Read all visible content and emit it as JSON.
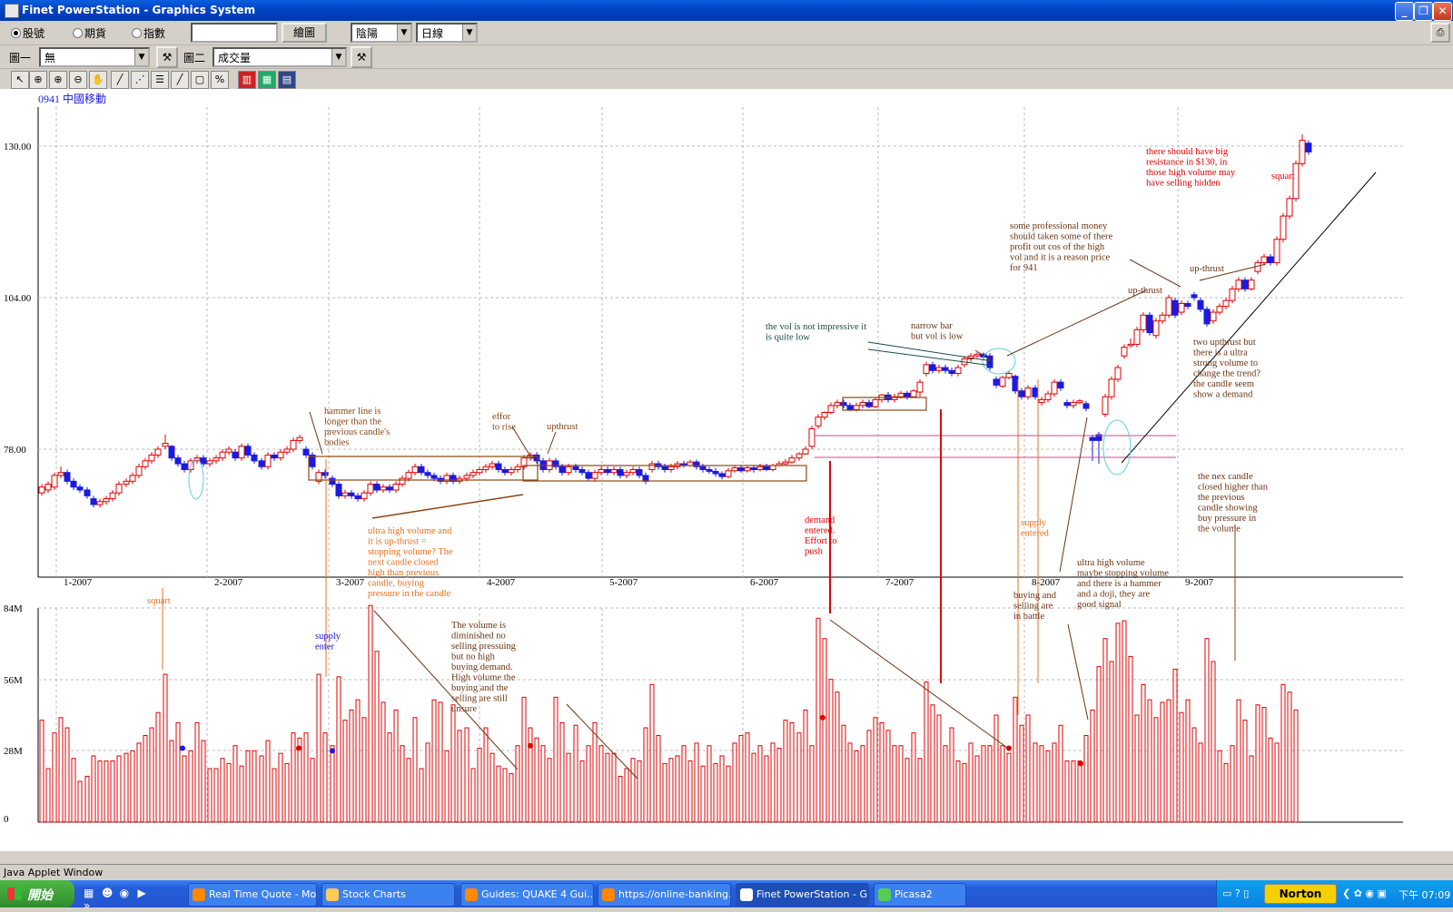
{
  "window": {
    "title": "Finet PowerStation - Graphics System"
  },
  "toolbar1": {
    "radios": [
      {
        "label": "股號",
        "checked": true
      },
      {
        "label": "期貨",
        "checked": false
      },
      {
        "label": "指數",
        "checked": false
      }
    ],
    "symbol_input": "",
    "draw_button": "繪圖",
    "chart_style": "陰陽",
    "period": "日線"
  },
  "toolbar2": {
    "graph1_label": "圖一",
    "graph1_value": "無",
    "graph2_label": "圖二",
    "graph2_value": "成交量"
  },
  "toolbar3": {
    "tools": [
      "pointer-icon",
      "crosshair-icon",
      "zoom-in-icon",
      "zoom-out-icon",
      "hand-icon",
      "line-tool-icon",
      "multi-line-tool-icon",
      "horizontal-lines-icon",
      "diagonal-line-icon",
      "box-tool-icon",
      "percent-tool-icon",
      "candle-type-icon",
      "color-chart-icon",
      "grid-chart-icon"
    ]
  },
  "chart": {
    "symbol_label": "0941 中國移動",
    "price_ticks": [
      "130.00",
      "104.00",
      "78.00"
    ],
    "month_labels": [
      "1-2007",
      "2-2007",
      "3-2007",
      "4-2007",
      "5-2007",
      "6-2007",
      "7-2007",
      "8-2007",
      "9-2007"
    ],
    "volume_ticks": [
      "84M",
      "56M",
      "28M",
      "0"
    ],
    "annotations": [
      {
        "text": "hammer line is\nlonger than the\nprevious candle's\nbodies",
        "color": "#8b4513"
      },
      {
        "text": "effor\nto rise",
        "color": "#8b4513"
      },
      {
        "text": "upthrust",
        "color": "#8b4513"
      },
      {
        "text": "ultra high volume and\nit is up-thrust =\nstopping volume? The\nnext candle closed\nhigh than previous\ncandle, buying\npressure in the candle",
        "color": "#e87020"
      },
      {
        "text": "squart",
        "color": "#e87020"
      },
      {
        "text": "supply\nenter",
        "color": "#1a1ae0"
      },
      {
        "text": "The volume is\ndiminished no\nselling pressuing\nbut no high\nbuying demand.\nHigh volume the\nbuying and the\nselling are still\nunsure",
        "color": "#6b3410"
      },
      {
        "text": "demand\nentered.\nEffort to\npush",
        "color": "#e00000"
      },
      {
        "text": "the vol is not impressive it\nis quite low",
        "color": "#1a4a4a"
      },
      {
        "text": "narrow bar\nbut vol is low",
        "color": "#6b3410"
      },
      {
        "text": "some professional money\nshould taken some of there\nprofit out cos of the high\nvol and it is a reason price\nfor 941",
        "color": "#6b3410"
      },
      {
        "text": "up-thrust",
        "color": "#6b3410"
      },
      {
        "text": "up-thrust",
        "color": "#6b3410"
      },
      {
        "text": "there should have big\nresistance in $130, in\nthose high volume may\nhave selling hidden",
        "color": "#e00000"
      },
      {
        "text": "squart",
        "color": "#e00000"
      },
      {
        "text": "two upthrust but\nthere is a ultra\nstrong volume to\nchange the trend?\nthe candle seem\nshow a demand",
        "color": "#6b3410"
      },
      {
        "text": "supply\nentered",
        "color": "#e87020"
      },
      {
        "text": "buying and\nselling are\nin battle",
        "color": "#6b3410"
      },
      {
        "text": "ultra high volume\nmaybe stopping volume\nand there is a hammer\nand a doji, they are\ngood signal",
        "color": "#6b3410"
      },
      {
        "text": "the nex candle\nclosed higher than\nthe previous\ncandle showing\nbuy pressure in\nthe volume",
        "color": "#6b3410"
      }
    ]
  },
  "status_bar": "Java Applet Window",
  "taskbar": {
    "start": "開始",
    "tasks": [
      "Real Time Quote - Mo...",
      "Stock Charts",
      "Guides: QUAKE 4 Gui...",
      "https://online-banking....",
      "Finet PowerStation - G...",
      "Picasa2"
    ],
    "norton": "Norton",
    "clock": "下午 07:09"
  },
  "colors": {
    "up": "#e00000",
    "down": "#1a1ae0",
    "volume": "#e00000",
    "grid": "#bbbbbb"
  }
}
